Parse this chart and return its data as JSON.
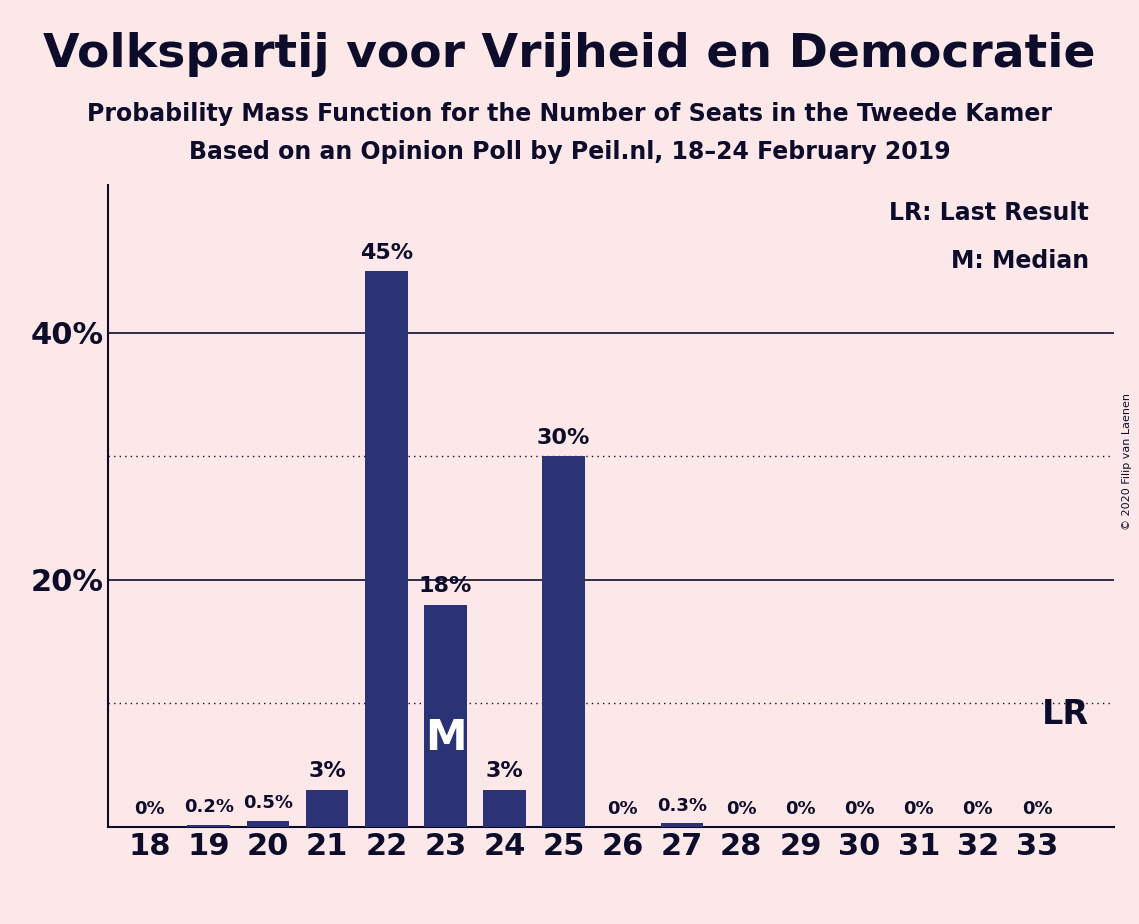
{
  "title": "Volkspartij voor Vrijheid en Democratie",
  "subtitle1": "Probability Mass Function for the Number of Seats in the Tweede Kamer",
  "subtitle2": "Based on an Opinion Poll by Peil.nl, 18–24 February 2019",
  "copyright": "© 2020 Filip van Laenen",
  "seats": [
    18,
    19,
    20,
    21,
    22,
    23,
    24,
    25,
    26,
    27,
    28,
    29,
    30,
    31,
    32,
    33
  ],
  "probabilities": [
    0.0,
    0.2,
    0.5,
    3.0,
    45.0,
    18.0,
    3.0,
    30.0,
    0.0,
    0.3,
    0.0,
    0.0,
    0.0,
    0.0,
    0.0,
    0.0
  ],
  "bar_color": "#2b3275",
  "background_color": "#fce8e8",
  "text_color": "#0d0d2b",
  "median_seat": 23,
  "last_result_seat": 33,
  "yticks": [
    20,
    40
  ],
  "ytick_labels": [
    "20%",
    "40%"
  ],
  "dotted_lines": [
    10.0,
    30.0
  ],
  "solid_lines": [
    20.0,
    40.0
  ],
  "legend_lr": "LR: Last Result",
  "legend_m": "M: Median",
  "lr_label": "LR",
  "median_label": "M",
  "bar_labels": [
    "0%",
    "0.2%",
    "0.5%",
    "3%",
    "45%",
    "18%",
    "3%",
    "30%",
    "0%",
    "0.3%",
    "0%",
    "0%",
    "0%",
    "0%",
    "0%",
    "0%"
  ],
  "ylim_max": 52,
  "xlim_min": 17.3,
  "xlim_max": 34.3,
  "title_fontsize": 34,
  "subtitle_fontsize": 17,
  "tick_fontsize": 22,
  "bar_label_fontsize_large": 16,
  "bar_label_fontsize_small": 13,
  "median_fontsize": 30,
  "lr_fontsize": 24,
  "legend_fontsize": 17,
  "copyright_fontsize": 8
}
